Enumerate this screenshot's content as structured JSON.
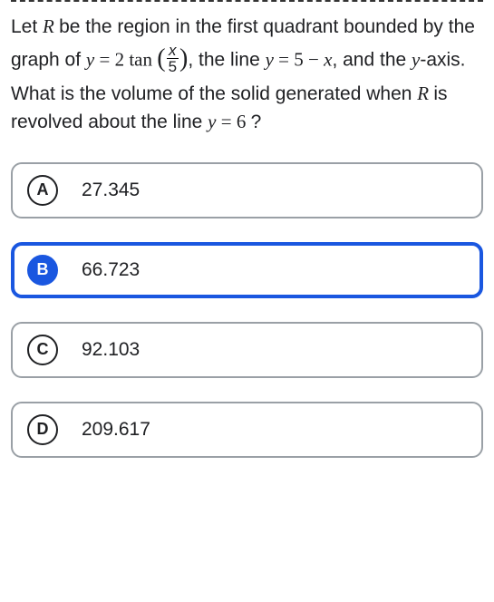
{
  "question": {
    "segments": [
      {
        "t": "text",
        "v": "Let "
      },
      {
        "t": "mathit",
        "v": "R "
      },
      {
        "t": "text",
        "v": "be the region in the first quadrant bounded by the graph of "
      },
      {
        "t": "mathit",
        "v": "y"
      },
      {
        "t": "math",
        "v": " = 2 tan "
      },
      {
        "t": "paren-open",
        "v": "("
      },
      {
        "t": "frac",
        "num": "x",
        "den": "5"
      },
      {
        "t": "paren-close",
        "v": ")"
      },
      {
        "t": "text",
        "v": ", the line "
      },
      {
        "t": "mathit",
        "v": "y"
      },
      {
        "t": "math",
        "v": " = 5 − "
      },
      {
        "t": "mathit",
        "v": "x"
      },
      {
        "t": "text",
        "v": ", and the "
      },
      {
        "t": "mathit",
        "v": "y"
      },
      {
        "t": "text",
        "v": "-axis. What is the volume of the solid generated when "
      },
      {
        "t": "mathit",
        "v": "R "
      },
      {
        "t": "text",
        "v": "is revolved about the line "
      },
      {
        "t": "mathit",
        "v": "y"
      },
      {
        "t": "math",
        "v": " = 6 "
      },
      {
        "t": "text",
        "v": "?"
      }
    ]
  },
  "options": [
    {
      "letter": "A",
      "text": "27.345",
      "selected": false
    },
    {
      "letter": "B",
      "text": "66.723",
      "selected": true
    },
    {
      "letter": "C",
      "text": "92.103",
      "selected": false
    },
    {
      "letter": "D",
      "text": "209.617",
      "selected": false
    }
  ],
  "colors": {
    "selected_border": "#1a57e0",
    "option_border": "#9aa0a6",
    "text": "#202124",
    "bg": "#ffffff"
  }
}
